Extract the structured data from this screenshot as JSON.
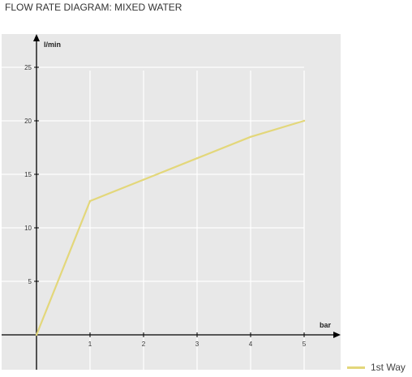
{
  "title": "FLOW RATE DIAGRAM: MIXED WATER",
  "chart_data": {
    "type": "line",
    "xlabel": "bar",
    "ylabel": "l/min",
    "xlim": [
      0,
      5
    ],
    "ylim": [
      0,
      25
    ],
    "x_ticks": [
      "1",
      "2",
      "3",
      "4",
      "5"
    ],
    "y_ticks": [
      "5",
      "10",
      "15",
      "20",
      "25"
    ],
    "grid": true,
    "legend_position": "bottom-right",
    "series": [
      {
        "name": "1st Way",
        "color": "#e3d77a",
        "x": [
          0,
          1,
          2,
          3,
          4,
          5
        ],
        "y": [
          0,
          12.5,
          14.5,
          16.5,
          18.5,
          20
        ]
      }
    ]
  }
}
